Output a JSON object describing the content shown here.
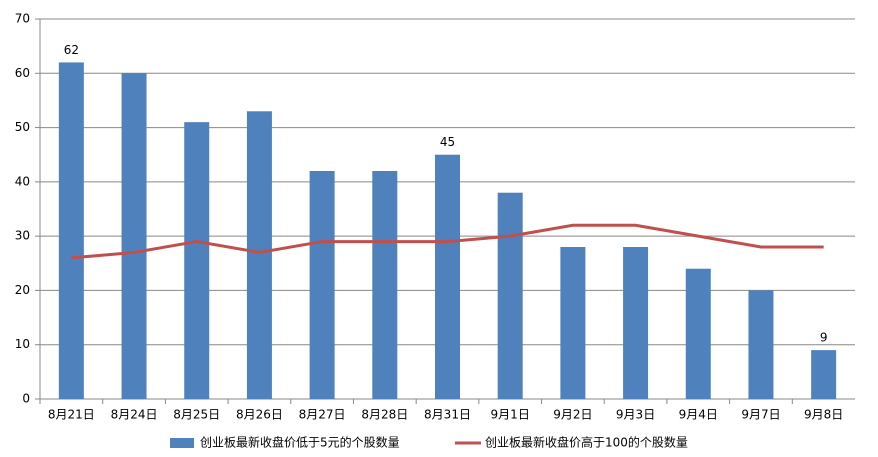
{
  "chart_data": {
    "type": "combo",
    "categories": [
      "8月21日",
      "8月24日",
      "8月25日",
      "8月26日",
      "8月27日",
      "8月28日",
      "8月31日",
      "9月1日",
      "9月2日",
      "9月3日",
      "9月4日",
      "9月7日",
      "9月8日"
    ],
    "series": [
      {
        "name": "创业板最新收盘价低于5元的个股数量",
        "type": "bar",
        "color": "#4f81bd",
        "values": [
          62,
          60,
          51,
          53,
          42,
          42,
          45,
          38,
          28,
          28,
          24,
          20,
          9
        ],
        "value_labels": [
          "62",
          null,
          null,
          null,
          null,
          null,
          "45",
          null,
          null,
          null,
          null,
          null,
          "9"
        ]
      },
      {
        "name": "创业板最新收盘价高于100的个股数量",
        "type": "line",
        "color": "#c0504d",
        "values": [
          26,
          27,
          29,
          27,
          29,
          29,
          29,
          30,
          32,
          32,
          30,
          28,
          28
        ]
      }
    ],
    "ylim": [
      0,
      70
    ],
    "yticks": [
      0,
      10,
      20,
      30,
      40,
      50,
      60,
      70
    ],
    "grid": true,
    "legend": "bottom"
  }
}
